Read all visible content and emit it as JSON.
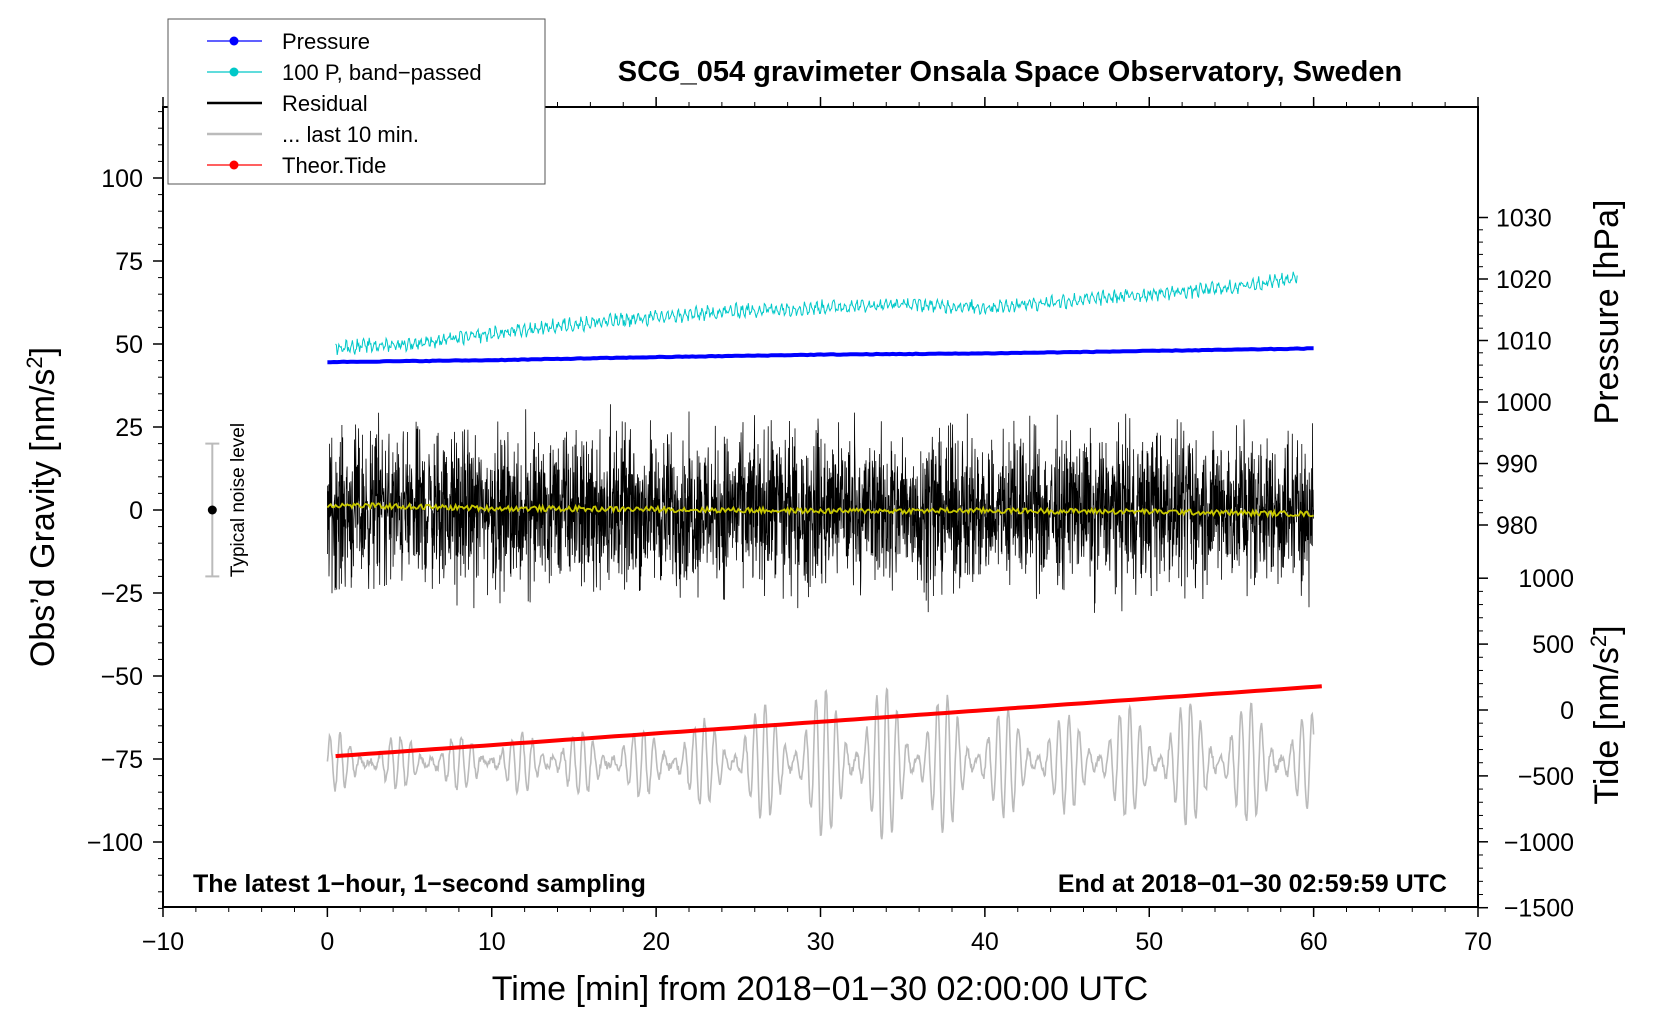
{
  "chart_data": {
    "type": "line",
    "title": "SCG_054 gravimeter Onsala Space Observatory, Sweden",
    "xlabel": "Time [min] from 2018−01−30 02:00:00 UTC",
    "ylabel_left": "Obs’d Gravity [nm/s",
    "ylabel_left_sup": "2",
    "ylabel_left_end": "]",
    "ylabel_right_pressure": "Pressure [hPa]",
    "ylabel_right_tide": "Tide [nm/s",
    "ylabel_right_tide_sup": "2",
    "ylabel_right_tide_end": "]",
    "xlim": [
      -10,
      70
    ],
    "ylim_left": [
      -120,
      120
    ],
    "x_ticks": [
      "−10",
      "0",
      "10",
      "20",
      "30",
      "40",
      "50",
      "60",
      "70"
    ],
    "y_ticks_left": [
      "100",
      "75",
      "50",
      "25",
      "0",
      "−25",
      "−50",
      "−75",
      "−100"
    ],
    "pressure_ticks": [
      "1030",
      "1020",
      "1010",
      "1000",
      "990",
      "980"
    ],
    "tide_ticks": [
      "1000",
      "500",
      "0",
      "−500",
      "−1000",
      "−1500"
    ],
    "bottom_left_note": "The latest 1−hour, 1−second sampling",
    "bottom_right_note": "End at 2018−01−30 02:59:59 UTC",
    "noise_label": "Typical noise level",
    "noise_bar": {
      "x": -7,
      "center": 0,
      "low": -20,
      "high": 20
    },
    "legend": [
      {
        "label": "Pressure",
        "color": "#0000ff",
        "marker": true
      },
      {
        "label": "100 P, band−passed",
        "color": "#00c8c8",
        "marker": true
      },
      {
        "label": "Residual",
        "color": "#000000",
        "marker": false
      },
      {
        "label": "... last 10 min.",
        "color": "#bbbbbb",
        "marker": false
      },
      {
        "label": "Theor.Tide",
        "color": "#ff0000",
        "marker": true
      }
    ],
    "series": [
      {
        "name": "Pressure",
        "color": "#0000ff",
        "axis": "pressure_hPa",
        "x": [
          0,
          10,
          20,
          30,
          40,
          50,
          60
        ],
        "values": [
          1006.5,
          1006.8,
          1007.3,
          1007.7,
          1007.9,
          1008.3,
          1008.7
        ]
      },
      {
        "name": "100 P, band-passed",
        "color": "#00c8c8",
        "axis": "gravity",
        "x": [
          0.5,
          5,
          10,
          15,
          20,
          25,
          30,
          35,
          40,
          45,
          50,
          55,
          59
        ],
        "values": [
          49,
          50,
          53,
          56,
          58,
          60,
          61,
          62,
          61,
          63,
          65,
          67,
          70
        ]
      },
      {
        "name": "Residual",
        "color": "#000000",
        "axis": "gravity",
        "x_range": [
          0,
          60
        ],
        "center": 0,
        "typical_min": -20,
        "typical_max": 20,
        "peak_max": 34,
        "peak_min": -32
      },
      {
        "name": "Residual smoothed",
        "color": "#c8c800",
        "axis": "gravity",
        "x": [
          0,
          10,
          20,
          30,
          40,
          50,
          60
        ],
        "values": [
          1.5,
          0.5,
          0.2,
          -0.3,
          -0.2,
          -0.5,
          -1.2
        ]
      },
      {
        "name": "... last 10 min.",
        "color": "#bbbbbb",
        "axis": "tide_nm_s2",
        "x_range": [
          0,
          60
        ],
        "center": -400,
        "amplitude_min": 200,
        "amplitude_max": 650
      },
      {
        "name": "Theor.Tide",
        "color": "#ff0000",
        "axis": "tide_nm_s2",
        "x": [
          0.5,
          60.5
        ],
        "values": [
          -350,
          180
        ]
      }
    ]
  }
}
